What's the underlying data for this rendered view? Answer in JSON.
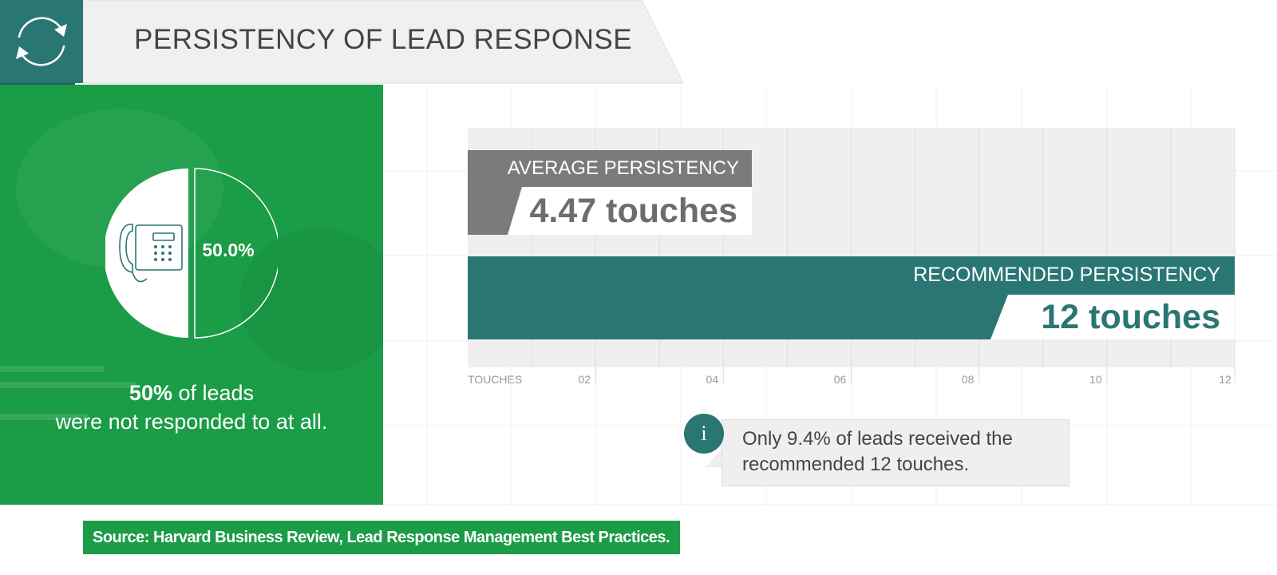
{
  "header": {
    "title": "PERSISTENCY OF LEAD RESPONSE",
    "icon": "refresh-icon"
  },
  "left_panel": {
    "donut_label": "50.0%",
    "donut_value": 0.5,
    "icon": "phone-icon",
    "caption_bold": "50%",
    "caption_rest": "of leads",
    "caption_line2": "were not responded to at all."
  },
  "chart": {
    "axis_label": "TOUCHES",
    "avg_label": "AVERAGE PERSISTENCY",
    "avg_value_text": "4.47 touches",
    "rec_label": "RECOMMENDED PERSISTENCY",
    "rec_value_text": "12 touches"
  },
  "note": {
    "icon": "info-icon",
    "icon_glyph": "i",
    "line1": "Only 9.4% of leads received the",
    "line2": "recommended 12 touches."
  },
  "source": "Source: Harvard Business Review, Lead Response Management Best Practices.",
  "colors": {
    "teal": "#2a7673",
    "green": "#1b9c47",
    "gray": "#7b7b7b",
    "light": "#efefef"
  },
  "chart_data": {
    "type": "bar",
    "orientation": "horizontal",
    "categories": [
      "AVERAGE PERSISTENCY",
      "RECOMMENDED PERSISTENCY"
    ],
    "values": [
      4.47,
      12
    ],
    "xlabel": "TOUCHES",
    "xlim": [
      0,
      12
    ],
    "ticks": [
      "02",
      "04",
      "06",
      "08",
      "10",
      "12"
    ],
    "grid": true
  }
}
